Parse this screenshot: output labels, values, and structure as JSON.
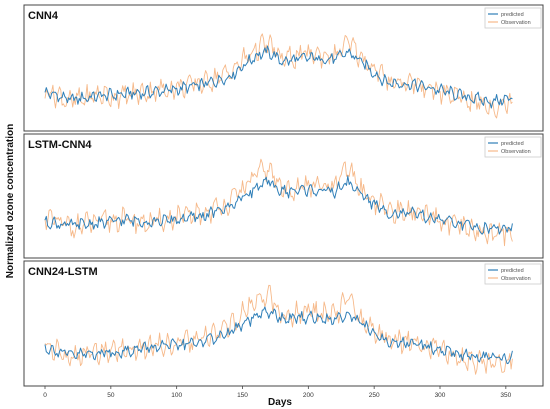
{
  "figure": {
    "ylabel": "Normalized ozone concentration",
    "xlabel": "Days",
    "x_ticks": [
      "0",
      "50",
      "100",
      "150",
      "200",
      "250",
      "300",
      "350"
    ]
  },
  "colors": {
    "predicted": "#2f7fb8",
    "observation": "#f6b98a",
    "frame": "#444444",
    "legend_frame": "#cccccc"
  },
  "chart_data": [
    {
      "type": "line",
      "title": "CNN4",
      "xlabel": "Days",
      "ylabel": "Normalized ozone concentration",
      "xlim": [
        0,
        360
      ],
      "ylim": [
        0,
        1
      ],
      "legend_position": "top-right",
      "legend": [
        "predicted",
        "Observation"
      ],
      "series": [
        {
          "name": "predicted",
          "x": [
            0,
            20,
            40,
            60,
            80,
            100,
            120,
            140,
            160,
            170,
            180,
            200,
            220,
            230,
            240,
            250,
            260,
            280,
            300,
            320,
            340,
            355
          ],
          "y": [
            0.3,
            0.22,
            0.26,
            0.28,
            0.3,
            0.33,
            0.38,
            0.46,
            0.68,
            0.72,
            0.62,
            0.66,
            0.64,
            0.72,
            0.62,
            0.5,
            0.4,
            0.38,
            0.32,
            0.25,
            0.2,
            0.24
          ]
        },
        {
          "name": "Observation",
          "x": [
            0,
            20,
            40,
            60,
            80,
            100,
            120,
            140,
            160,
            170,
            180,
            200,
            220,
            230,
            240,
            250,
            260,
            280,
            300,
            320,
            340,
            355
          ],
          "y": [
            0.33,
            0.2,
            0.27,
            0.26,
            0.31,
            0.35,
            0.4,
            0.5,
            0.75,
            0.8,
            0.64,
            0.7,
            0.68,
            0.82,
            0.66,
            0.55,
            0.42,
            0.4,
            0.3,
            0.22,
            0.15,
            0.2
          ]
        }
      ]
    },
    {
      "type": "line",
      "title": "LSTM-CNN4",
      "xlabel": "Days",
      "ylabel": "Normalized ozone concentration",
      "xlim": [
        0,
        360
      ],
      "ylim": [
        0,
        1
      ],
      "legend_position": "top-right",
      "legend": [
        "predicted",
        "Observation"
      ],
      "series": [
        {
          "name": "predicted",
          "x": [
            0,
            20,
            40,
            60,
            80,
            100,
            120,
            140,
            160,
            170,
            180,
            200,
            220,
            230,
            240,
            250,
            260,
            280,
            300,
            320,
            340,
            355
          ],
          "y": [
            0.28,
            0.24,
            0.26,
            0.3,
            0.28,
            0.3,
            0.34,
            0.44,
            0.64,
            0.7,
            0.6,
            0.62,
            0.6,
            0.7,
            0.58,
            0.46,
            0.38,
            0.36,
            0.3,
            0.24,
            0.2,
            0.22
          ]
        },
        {
          "name": "Observation",
          "x": [
            0,
            20,
            40,
            60,
            80,
            100,
            120,
            140,
            160,
            170,
            180,
            200,
            220,
            230,
            240,
            250,
            260,
            280,
            300,
            320,
            340,
            355
          ],
          "y": [
            0.32,
            0.22,
            0.28,
            0.3,
            0.26,
            0.32,
            0.36,
            0.48,
            0.78,
            0.84,
            0.62,
            0.66,
            0.64,
            0.86,
            0.62,
            0.5,
            0.4,
            0.38,
            0.28,
            0.2,
            0.14,
            0.18
          ]
        }
      ]
    },
    {
      "type": "line",
      "title": "CNN24-LSTM",
      "xlabel": "Days",
      "ylabel": "Normalized ozone concentration",
      "xlim": [
        0,
        360
      ],
      "ylim": [
        0,
        1
      ],
      "legend_position": "top-right",
      "legend": [
        "predicted",
        "Observation"
      ],
      "series": [
        {
          "name": "predicted",
          "x": [
            0,
            20,
            40,
            60,
            80,
            100,
            120,
            140,
            160,
            170,
            180,
            200,
            220,
            230,
            240,
            250,
            260,
            280,
            300,
            320,
            340,
            355
          ],
          "y": [
            0.3,
            0.22,
            0.24,
            0.26,
            0.3,
            0.32,
            0.36,
            0.46,
            0.62,
            0.68,
            0.6,
            0.62,
            0.6,
            0.66,
            0.56,
            0.44,
            0.36,
            0.34,
            0.28,
            0.22,
            0.18,
            0.2
          ]
        },
        {
          "name": "Observation",
          "x": [
            0,
            20,
            40,
            60,
            80,
            100,
            120,
            140,
            160,
            170,
            180,
            200,
            220,
            230,
            240,
            250,
            260,
            280,
            300,
            320,
            340,
            355
          ],
          "y": [
            0.34,
            0.18,
            0.26,
            0.28,
            0.32,
            0.34,
            0.38,
            0.52,
            0.8,
            0.88,
            0.62,
            0.68,
            0.64,
            0.82,
            0.6,
            0.48,
            0.38,
            0.36,
            0.26,
            0.18,
            0.12,
            0.16
          ]
        }
      ]
    }
  ]
}
